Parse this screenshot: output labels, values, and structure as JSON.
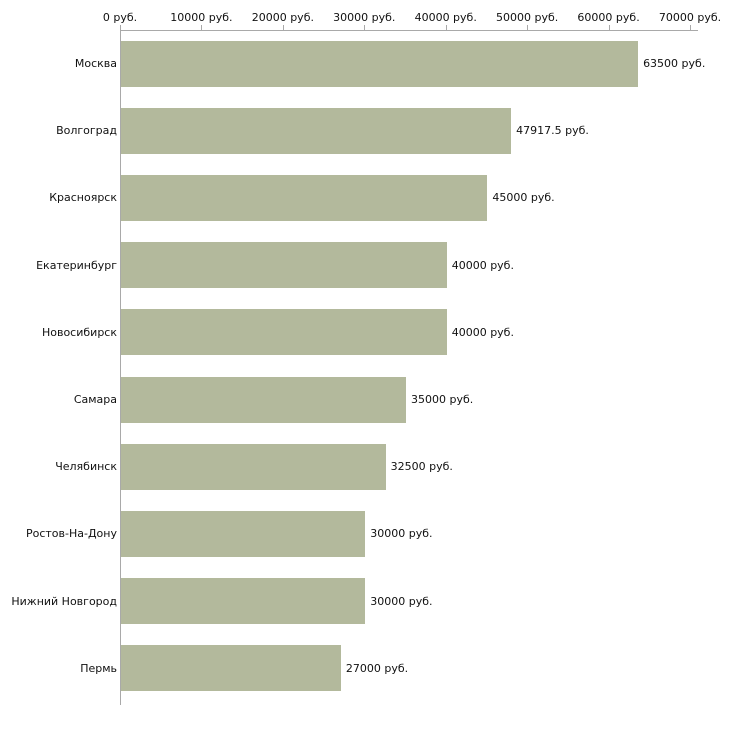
{
  "chart_data": {
    "type": "bar",
    "orientation": "horizontal",
    "title": "",
    "xlabel": "",
    "ylabel": "",
    "xlim": [
      0,
      70000
    ],
    "grid": false,
    "legend": false,
    "bar_color": "#b3b99c",
    "axis_color": "#a9a9a9",
    "categories": [
      "Москва",
      "Волгоград",
      "Красноярск",
      "Екатеринбург",
      "Новосибирск",
      "Самара",
      "Челябинск",
      "Ростов-На-Дону",
      "Нижний Новгород",
      "Пермь"
    ],
    "values": [
      63500,
      47917.5,
      45000,
      40000,
      40000,
      35000,
      32500,
      30000,
      30000,
      27000
    ],
    "value_labels": [
      "63500 руб.",
      "47917.5 руб.",
      "45000 руб.",
      "40000 руб.",
      "40000 руб.",
      "35000 руб.",
      "32500 руб.",
      "30000 руб.",
      "30000 руб.",
      "27000 руб."
    ],
    "x_ticks": [
      0,
      10000,
      20000,
      30000,
      40000,
      50000,
      60000,
      70000
    ],
    "x_tick_labels": [
      "0 руб.",
      "10000 руб.",
      "20000 руб.",
      "30000 руб.",
      "40000 руб.",
      "50000 руб.",
      "60000 руб.",
      "70000 руб."
    ]
  }
}
